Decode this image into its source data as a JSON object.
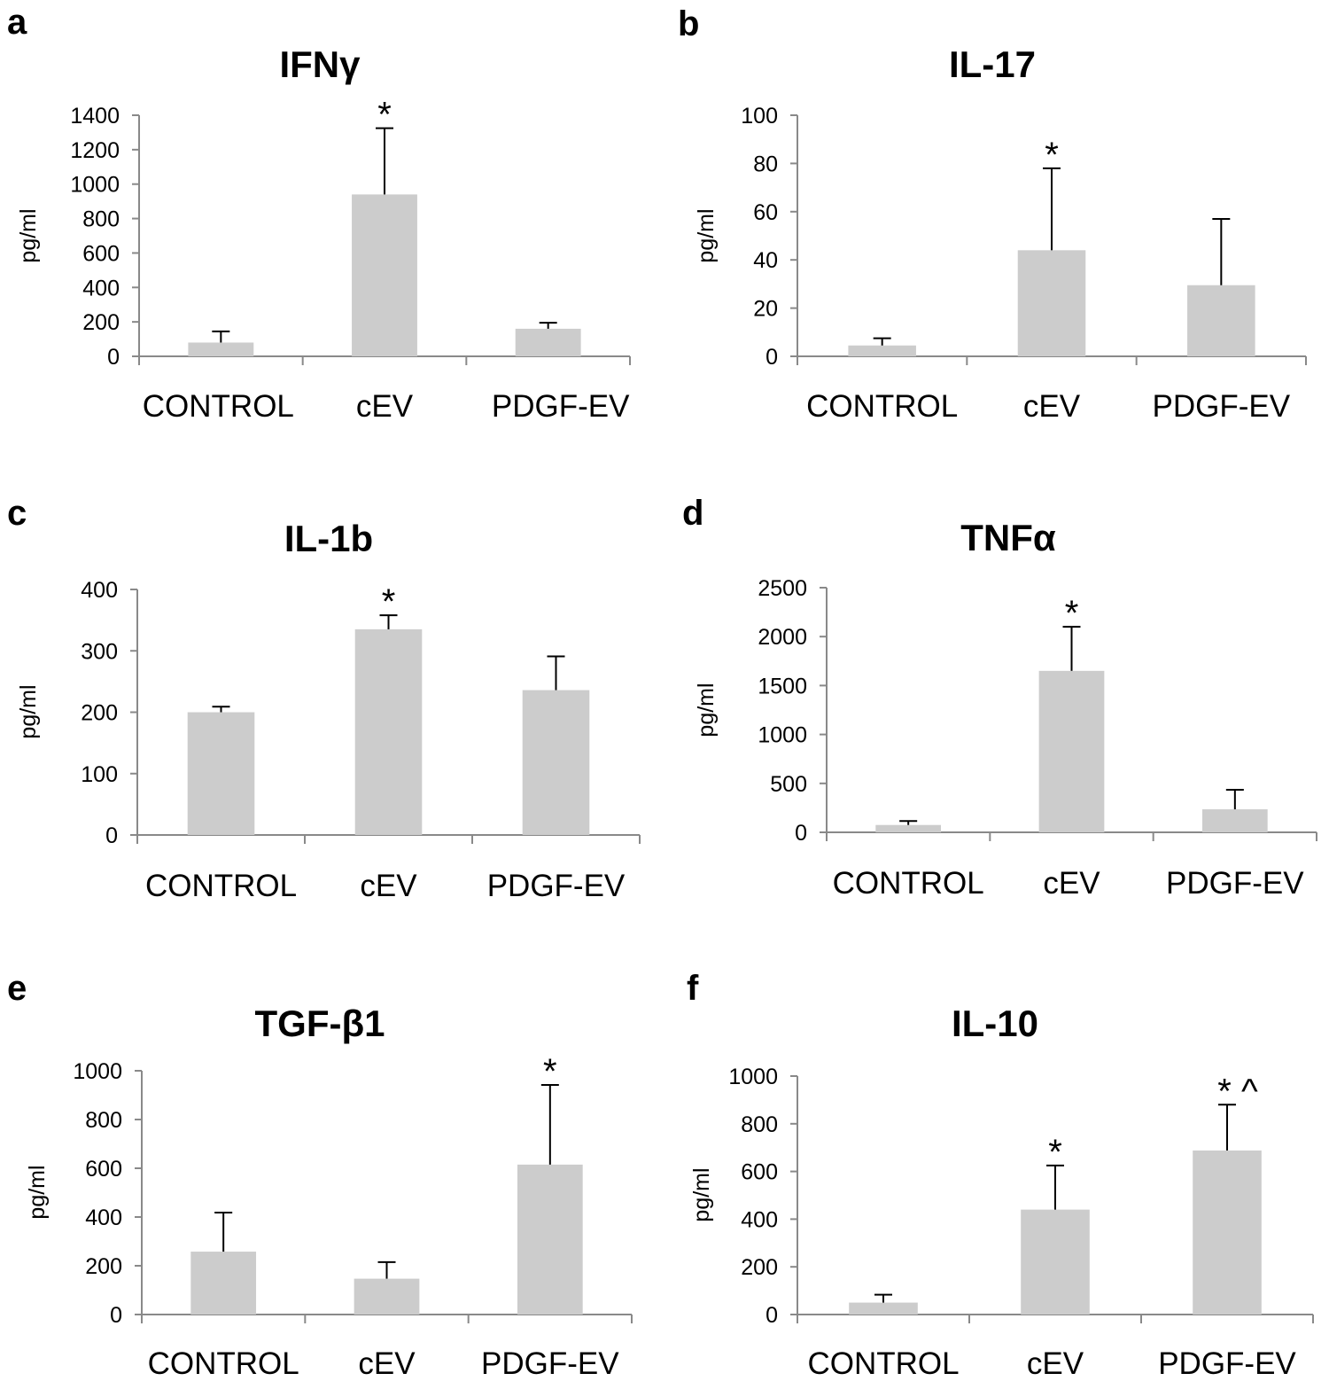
{
  "colors": {
    "bar": "#cccccc",
    "axis": "#898989",
    "error": "#000000",
    "text": "#000000"
  },
  "chart_data": [
    {
      "panel": "a",
      "type": "bar",
      "title": "IFNγ",
      "ylabel": "pg/ml",
      "categories": [
        "CONTROL",
        "cEV",
        "PDGF-EV"
      ],
      "values": [
        80,
        940,
        160
      ],
      "errors": [
        65,
        385,
        35
      ],
      "ylim": [
        0,
        1400
      ],
      "yticks": [
        "0",
        "200",
        "400",
        "600",
        "800",
        "1000",
        "1200",
        "1400"
      ],
      "significance": [
        "",
        "*",
        ""
      ]
    },
    {
      "panel": "b",
      "type": "bar",
      "title": "IL-17",
      "ylabel": "pg/ml",
      "categories": [
        "CONTROL",
        "cEV",
        "PDGF-EV"
      ],
      "values": [
        4.5,
        44,
        29.5
      ],
      "errors": [
        3,
        34,
        27.5
      ],
      "ylim": [
        0,
        100
      ],
      "yticks": [
        "0",
        "20",
        "40",
        "60",
        "80",
        "100"
      ],
      "significance": [
        "",
        "*",
        ""
      ]
    },
    {
      "panel": "c",
      "type": "bar",
      "title": "IL-1b",
      "ylabel": "pg/ml",
      "categories": [
        "CONTROL",
        "cEV",
        "PDGF-EV"
      ],
      "values": [
        200,
        335,
        236
      ],
      "errors": [
        9,
        23,
        55
      ],
      "ylim": [
        0,
        400
      ],
      "yticks": [
        "0",
        "100",
        "200",
        "300",
        "400"
      ],
      "significance": [
        "",
        "*",
        ""
      ]
    },
    {
      "panel": "d",
      "type": "bar",
      "title": "TNFα",
      "ylabel": "pg/ml",
      "categories": [
        "CONTROL",
        "cEV",
        "PDGF-EV"
      ],
      "values": [
        75,
        1650,
        235
      ],
      "errors": [
        40,
        450,
        200
      ],
      "ylim": [
        0,
        2500
      ],
      "yticks": [
        "0",
        "500",
        "1000",
        "1500",
        "2000",
        "2500"
      ],
      "significance": [
        "",
        "*",
        ""
      ]
    },
    {
      "panel": "e",
      "type": "bar",
      "title": "TGF-β1",
      "ylabel": "pg/ml",
      "categories": [
        "CONTROL",
        "cEV",
        "PDGF-EV"
      ],
      "values": [
        258,
        147,
        615
      ],
      "errors": [
        160,
        68,
        327
      ],
      "ylim": [
        0,
        1000
      ],
      "yticks": [
        "0",
        "200",
        "400",
        "600",
        "800",
        "1000"
      ],
      "significance": [
        "",
        "",
        "*"
      ]
    },
    {
      "panel": "f",
      "type": "bar",
      "title": "IL-10",
      "ylabel": "pg/ml",
      "categories": [
        "CONTROL",
        "cEV",
        "PDGF-EV"
      ],
      "values": [
        50,
        440,
        688
      ],
      "errors": [
        33,
        185,
        192
      ],
      "ylim": [
        0,
        1000
      ],
      "yticks": [
        "0",
        "200",
        "400",
        "600",
        "800",
        "1000"
      ],
      "significance": [
        "",
        "*",
        "* ^"
      ]
    }
  ]
}
